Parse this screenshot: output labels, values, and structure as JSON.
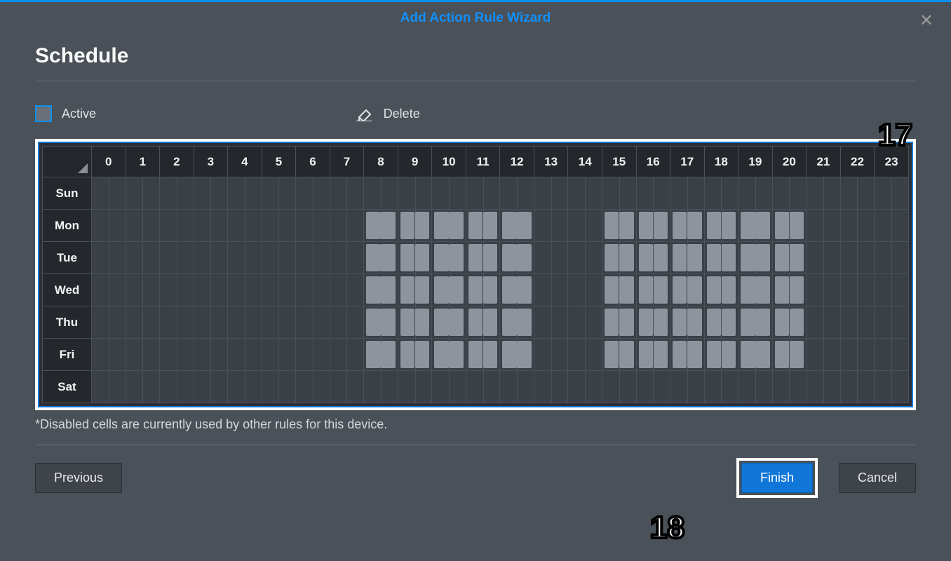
{
  "window": {
    "title": "Add Action Rule Wizard",
    "close_symbol": "✕"
  },
  "page": {
    "heading": "Schedule",
    "footnote": "*Disabled cells are currently used by other rules for this device."
  },
  "tools": {
    "active_label": "Active",
    "delete_label": "Delete"
  },
  "footer": {
    "previous": "Previous",
    "finish": "Finish",
    "cancel": "Cancel"
  },
  "annotations": {
    "a17": "17",
    "a18": "18"
  },
  "schedule": {
    "hours": [
      "0",
      "1",
      "2",
      "3",
      "4",
      "5",
      "6",
      "7",
      "8",
      "9",
      "10",
      "11",
      "12",
      "13",
      "14",
      "15",
      "16",
      "17",
      "18",
      "19",
      "20",
      "21",
      "22",
      "23"
    ],
    "days": [
      "Sun",
      "Mon",
      "Tue",
      "Wed",
      "Thu",
      "Fri",
      "Sat"
    ],
    "selected_hours": {
      "Sun": [],
      "Mon": [
        8,
        9,
        10,
        11,
        12,
        15,
        16,
        17,
        18,
        19,
        20
      ],
      "Tue": [
        8,
        9,
        10,
        11,
        12,
        15,
        16,
        17,
        18,
        19,
        20
      ],
      "Wed": [
        8,
        9,
        10,
        11,
        12,
        15,
        16,
        17,
        18,
        19,
        20
      ],
      "Thu": [
        8,
        9,
        10,
        11,
        12,
        15,
        16,
        17,
        18,
        19,
        20
      ],
      "Fri": [
        8,
        9,
        10,
        11,
        12,
        15,
        16,
        17,
        18,
        19,
        20
      ],
      "Sat": []
    },
    "colors": {
      "accent": "#0a91f0",
      "header_bg": "#24272c",
      "cell_bg": "#3b4046",
      "cell_border": "#4a5158",
      "selected_block": "#8d949d",
      "outer_frame": "#ffffff",
      "inner_frame": "#1077d8"
    }
  }
}
